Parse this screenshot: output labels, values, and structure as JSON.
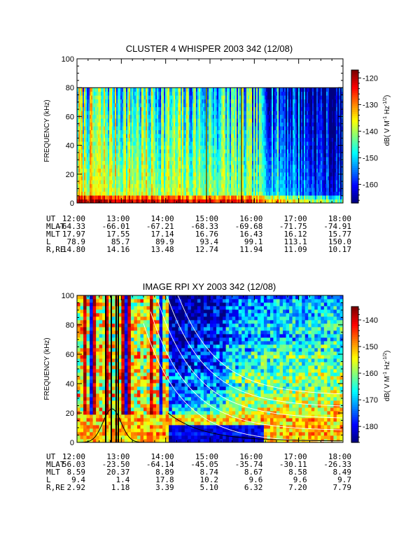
{
  "chart_data": [
    {
      "type": "heatmap",
      "title": "CLUSTER 4 WHISPER 2003 342 (12/08)",
      "ylabel": "FREQUENCY (kHz)",
      "ylim": [
        0,
        100
      ],
      "yticks": [
        0,
        20,
        40,
        60,
        80,
        100
      ],
      "data_freq_max": 80,
      "x_ticks": [
        "12:00",
        "13:00",
        "14:00",
        "15:00",
        "16:00",
        "17:00",
        "18:00"
      ],
      "colorbar": {
        "label_main": "dB( V M",
        "label_sup1": "-1",
        "label_hz": " Hz",
        "label_sup2": "-1/2",
        "label_end": ")",
        "range": [
          -167,
          -117
        ],
        "ticks": [
          -160,
          -150,
          -140,
          -130,
          -120
        ]
      },
      "ephemeris": [
        {
          "label": "UT",
          "values": [
            "12:00",
            "13:00",
            "14:00",
            "15:00",
            "16:00",
            "17:00",
            "18:00"
          ]
        },
        {
          "label": "MLAT",
          "values": [
            "-64.33",
            "-66.01",
            "-67.21",
            "-68.33",
            "-69.68",
            "-71.75",
            "-74.91"
          ]
        },
        {
          "label": "MLT",
          "values": [
            "17.97",
            "17.55",
            "17.14",
            "16.76",
            "16.43",
            "16.12",
            "15.77"
          ]
        },
        {
          "label": "L",
          "values": [
            "78.9",
            "85.7",
            "89.9",
            "93.4",
            "99.1",
            "113.1",
            "150.0"
          ]
        },
        {
          "label": "R,RE",
          "values": [
            "14.80",
            "14.16",
            "13.48",
            "12.74",
            "11.94",
            "11.09",
            "10.17"
          ]
        }
      ]
    },
    {
      "type": "heatmap",
      "title": "IMAGE RPI XY 2003 342 (12/08)",
      "ylabel": "FREQUENCY (kHz)",
      "ylim": [
        0,
        100
      ],
      "yticks": [
        0,
        20,
        40,
        60,
        80,
        100
      ],
      "x_ticks": [
        "12:00",
        "13:00",
        "14:00",
        "15:00",
        "16:00",
        "17:00",
        "18:00"
      ],
      "colorbar": {
        "label_main": "dB( V M",
        "label_sup1": "-1",
        "label_hz": " Hz",
        "label_sup2": "-1/2",
        "label_end": ")",
        "range": [
          -186,
          -135
        ],
        "ticks": [
          -180,
          -170,
          -160,
          -150,
          -140
        ]
      },
      "ephemeris": [
        {
          "label": "UT",
          "values": [
            "12:00",
            "13:00",
            "14:00",
            "15:00",
            "16:00",
            "17:00",
            "18:00"
          ]
        },
        {
          "label": "MLAT",
          "values": [
            "56.03",
            "-23.50",
            "-64.14",
            "-45.05",
            "-35.74",
            "-30.11",
            "-26.33"
          ]
        },
        {
          "label": "MLT",
          "values": [
            "8.59",
            "20.37",
            "8.89",
            "8.74",
            "8.67",
            "8.58",
            "8.49"
          ]
        },
        {
          "label": "L",
          "values": [
            "9.4",
            "1.4",
            "17.8",
            "10.2",
            "9.6",
            "9.6",
            "9.7"
          ]
        },
        {
          "label": "R,RE",
          "values": [
            "2.92",
            "1.18",
            "3.39",
            "5.10",
            "6.32",
            "7.20",
            "7.79"
          ]
        }
      ]
    }
  ]
}
